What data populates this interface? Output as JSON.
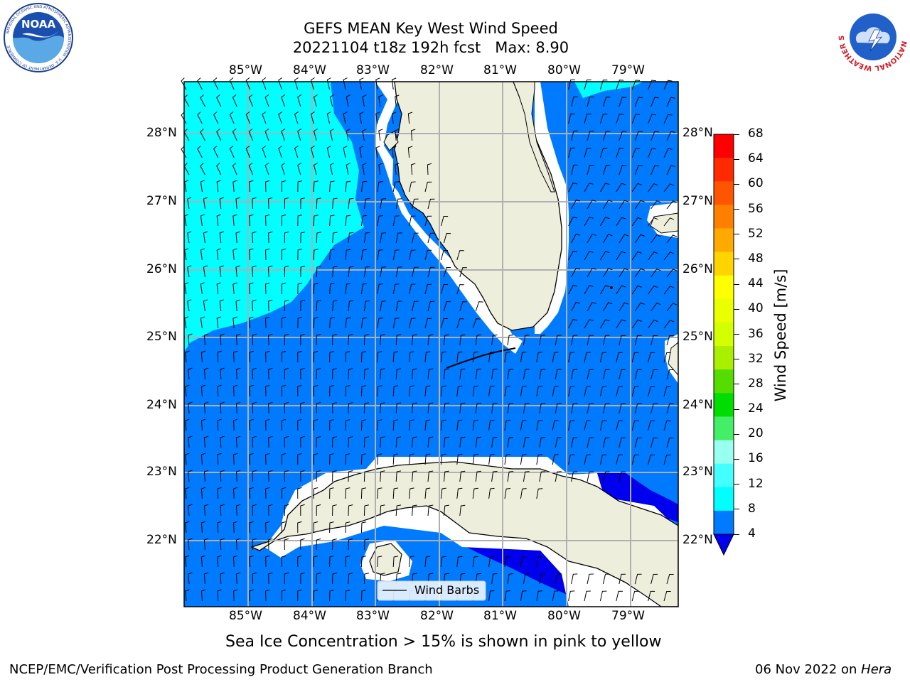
{
  "title": {
    "line1": "GEFS MEAN Key West Wind Speed",
    "line2": "20221104 t18z 192h fcst   Max: 8.90"
  },
  "logos": {
    "noaa_text": "NOAA",
    "noaa_ring_text": "NATIONAL OCEANIC AND ATMOSPHERIC ADMINISTRATION · U.S. DEPARTMENT OF COMMERCE",
    "nws_ring_text": "NATIONAL WEATHER SERVICE"
  },
  "map": {
    "lon_labels": [
      "85°W",
      "84°W",
      "83°W",
      "82°W",
      "81°W",
      "80°W",
      "79°W"
    ],
    "lat_labels": [
      "28°N",
      "27°N",
      "26°N",
      "25°N",
      "24°N",
      "23°N",
      "22°N"
    ],
    "legend_label": "Wind Barbs",
    "colors": {
      "cyan": "#00FFFF",
      "blue": "#007BFF",
      "deep_blue": "#0000EE",
      "land": "#EEEEDD",
      "grid": "#B0B0B0"
    }
  },
  "colorbar": {
    "label": "Wind Speed [m/s]",
    "ticks": [
      "68",
      "64",
      "60",
      "56",
      "52",
      "48",
      "44",
      "40",
      "36",
      "32",
      "28",
      "24",
      "20",
      "16",
      "12",
      "8",
      "4"
    ],
    "colors": [
      "#FF0000",
      "#FF2A00",
      "#FF5500",
      "#FF7F00",
      "#FFAA00",
      "#FFD400",
      "#FFFF00",
      "#EAFF00",
      "#D4FF00",
      "#AAEE00",
      "#55DD00",
      "#00DD00",
      "#44EE66",
      "#99FFEE",
      "#44FFFF",
      "#00FFFF",
      "#007BFF"
    ],
    "extend_color": "#0000EE"
  },
  "notes": {
    "sea_ice": "Sea Ice Concentration > 15% is shown in pink to yellow",
    "credit": "NCEP/EMC/Verification Post Processing Product Generation Branch",
    "date": "06 Nov 2022 on",
    "machine": "Hera"
  }
}
